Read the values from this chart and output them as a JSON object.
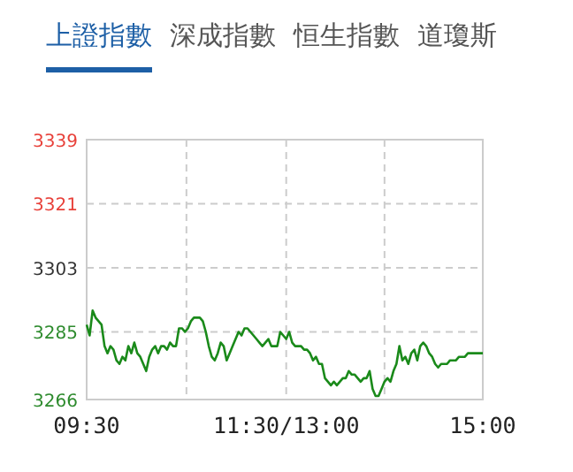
{
  "chart_data": {
    "type": "line",
    "title": "上證指數",
    "annotations": [
      "深成指數",
      "恒生指數",
      "道瓊斯"
    ],
    "categories": [
      "09:30",
      null,
      null,
      null,
      null,
      null,
      null,
      null,
      null,
      null,
      null,
      null,
      null,
      null,
      null,
      null,
      null,
      null,
      null,
      null,
      null,
      null,
      null,
      null,
      null,
      null,
      null,
      null,
      null,
      null,
      null,
      null,
      null,
      null,
      null,
      null,
      null,
      null,
      null,
      null,
      null,
      null,
      null,
      null,
      null,
      null,
      null,
      null,
      null,
      null,
      null,
      null,
      null,
      null,
      null,
      null,
      null,
      null,
      null,
      null,
      null,
      null,
      null,
      null,
      null,
      null,
      null,
      "11:30/13:00",
      null,
      null,
      null,
      null,
      null,
      null,
      null,
      null,
      null,
      null,
      null,
      null,
      null,
      null,
      null,
      null,
      null,
      null,
      null,
      null,
      null,
      null,
      null,
      null,
      null,
      null,
      null,
      null,
      null,
      null,
      null,
      null,
      null,
      null,
      null,
      null,
      null,
      null,
      null,
      null,
      null,
      null,
      null,
      null,
      null,
      null,
      null,
      null,
      null,
      null,
      null,
      null,
      null,
      null,
      null,
      null,
      null,
      null,
      null,
      null,
      null,
      null,
      null,
      null,
      null,
      "15:00"
    ],
    "series": [
      {
        "color": "#1a8a1a",
        "values": [
          3287,
          3284,
          3291,
          3289,
          3288,
          3287,
          3281,
          3279,
          3281,
          3280,
          3277,
          3276,
          3278,
          3277,
          3281,
          3279,
          3282,
          3279,
          3278,
          3276,
          3274,
          3278,
          3280,
          3281,
          3279,
          3281,
          3281,
          3280,
          3282,
          3281,
          3281,
          3286,
          3286,
          3285,
          3286,
          3288,
          3289,
          3289,
          3289,
          3288,
          3285,
          3281,
          3278,
          3277,
          3279,
          3282,
          3281,
          3277,
          3279,
          3281,
          3283,
          3285,
          3284,
          3286,
          3286,
          3285,
          3284,
          3283,
          3282,
          3281,
          3282,
          3283,
          3281,
          3281,
          3281,
          3285,
          3284,
          3283,
          3285,
          3282,
          3281,
          3281,
          3281,
          3280,
          3280,
          3279,
          3277,
          3278,
          3276,
          3276,
          3272,
          3271,
          3270,
          3271,
          3270,
          3271,
          3272,
          3272,
          3274,
          3273,
          3273,
          3272,
          3271,
          3272,
          3272,
          3274,
          3269,
          3267,
          3267,
          3269,
          3271,
          3272,
          3271,
          3274,
          3276,
          3281,
          3277,
          3278,
          3276,
          3279,
          3280,
          3277,
          3281,
          3282,
          3281,
          3279,
          3278,
          3276,
          3275,
          3276,
          3276,
          3276,
          3277,
          3277,
          3277,
          3278,
          3278,
          3278,
          3279,
          3279,
          3279,
          3279,
          3279,
          3279
        ]
      }
    ],
    "ylim": [
      3266,
      3339
    ],
    "yticks": [
      3266,
      3285,
      3303,
      3321,
      3339
    ],
    "grid": true
  }
}
